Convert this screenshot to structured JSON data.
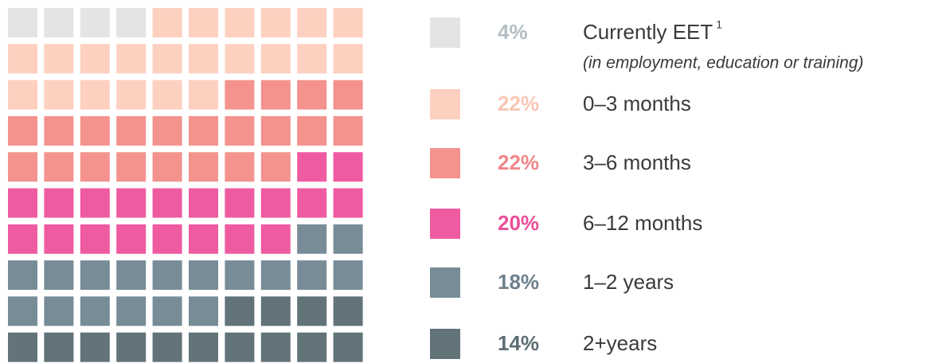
{
  "chart_data": {
    "type": "waffle",
    "categories": [
      "Currently EET",
      "0–3 months",
      "3–6 months",
      "6–12 months",
      "1–2 years",
      "2+years"
    ],
    "values": [
      4,
      22,
      22,
      20,
      18,
      14
    ],
    "value_labels": [
      "4%",
      "22%",
      "22%",
      "20%",
      "18%",
      "14%"
    ],
    "colors": [
      "#e2e4e6",
      "#fdd0c0",
      "#f4928e",
      "#ef5ba1",
      "#778c97",
      "#62737a"
    ],
    "label_colors": [
      "#b4bec5",
      "#f9c6b4",
      "#f1868a",
      "#ea4f9a",
      "#6d818c",
      "#5c6d75"
    ],
    "grid_columns": 10,
    "annotations": {
      "superscript": "1",
      "subtitle": "(in employment, education or training)"
    }
  }
}
